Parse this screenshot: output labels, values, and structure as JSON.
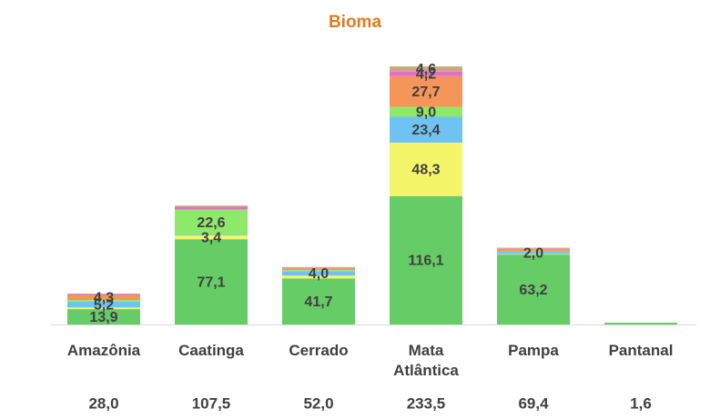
{
  "chart_data": {
    "type": "stacked_bar",
    "title": "Bioma",
    "categories": [
      "Amazônia",
      "Caatinga",
      "Cerrado",
      "Mata Atlântica",
      "Pampa",
      "Pantanal"
    ],
    "ylim": [
      0,
      240
    ],
    "series": [
      {
        "color": "#66cc66",
        "values": [
          13.9,
          77.1,
          41.7,
          116.1,
          63.2,
          1.6
        ],
        "value_labels": [
          "13,9",
          "77,1",
          "41,7",
          "116,1",
          "63,2",
          null
        ]
      },
      {
        "color": "#f5f56a",
        "values": [
          1.5,
          3.4,
          2.5,
          48.3,
          0.5,
          0
        ],
        "value_labels": [
          null,
          "3,4",
          null,
          "48,3",
          null,
          null
        ]
      },
      {
        "color": "#6fc3f2",
        "values": [
          5.2,
          0.5,
          4.0,
          23.4,
          2.0,
          0
        ],
        "value_labels": [
          "5,2",
          null,
          "4,0",
          "23,4",
          "2,0",
          null
        ]
      },
      {
        "color": "#8ee86a",
        "values": [
          1.5,
          22.6,
          1.0,
          9.0,
          0.5,
          0
        ],
        "value_labels": [
          null,
          "22,6",
          null,
          "9,0",
          null,
          null
        ]
      },
      {
        "color": "#f4955a",
        "values": [
          4.3,
          0.5,
          1.5,
          27.7,
          2.2,
          0
        ],
        "value_labels": [
          "4,3",
          null,
          null,
          "27,7",
          null,
          null
        ]
      },
      {
        "color": "#e36fc7",
        "values": [
          1.0,
          2.4,
          0.5,
          4.2,
          0.3,
          0
        ],
        "value_labels": [
          null,
          null,
          null,
          "4,2",
          null,
          null
        ]
      },
      {
        "color": "#c9a77c",
        "values": [
          0.6,
          1.0,
          0.8,
          4.6,
          0.7,
          0
        ],
        "value_labels": [
          null,
          null,
          null,
          "4,6",
          null,
          null
        ]
      }
    ],
    "totals": {
      "values": [
        28.0,
        107.5,
        52.0,
        233.5,
        69.4,
        1.6
      ],
      "value_labels": [
        "28,0",
        "107,5",
        "52,0",
        "233,5",
        "69,4",
        "1,6"
      ]
    }
  }
}
